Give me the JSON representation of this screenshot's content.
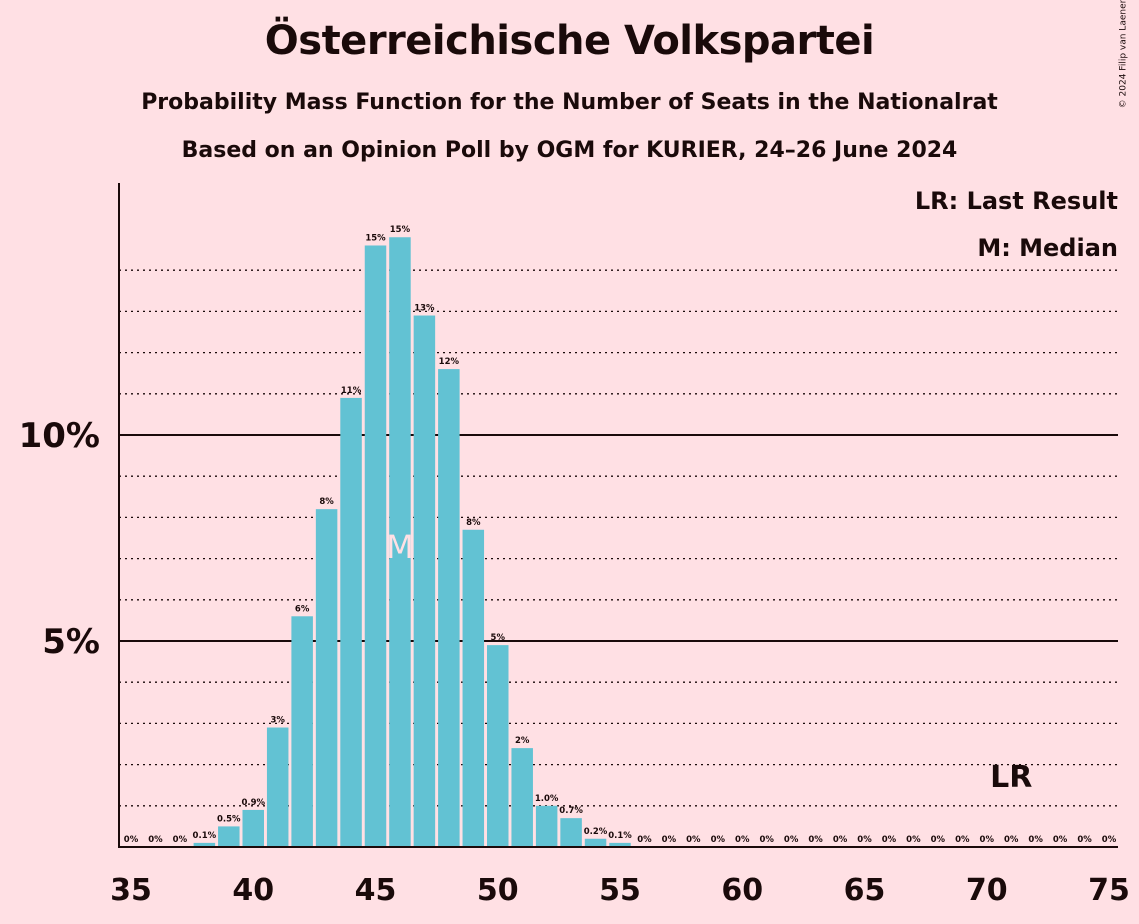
{
  "title": "Österreichische Volkspartei",
  "subtitle1": "Probability Mass Function for the Number of Seats in the Nationalrat",
  "subtitle2": "Based on an Opinion Poll by OGM for KURIER, 24–26 June 2024",
  "copyright": "© 2024 Filip van Laenen",
  "legend": {
    "lr": "LR: Last Result",
    "median": "M: Median"
  },
  "markers": {
    "median_label": "M",
    "median_seat": 46,
    "lr_label": "LR",
    "lr_seat": 71
  },
  "colors": {
    "background": "#ffe0e4",
    "bar": "#62c2d3",
    "text": "#1a0a0a"
  },
  "chart_data": {
    "type": "bar",
    "x": [
      35,
      36,
      37,
      38,
      39,
      40,
      41,
      42,
      43,
      44,
      45,
      46,
      47,
      48,
      49,
      50,
      51,
      52,
      53,
      54,
      55,
      56,
      57,
      58,
      59,
      60,
      61,
      62,
      63,
      64,
      65,
      66,
      67,
      68,
      69,
      70,
      71,
      72,
      73,
      74,
      75
    ],
    "values": [
      0,
      0,
      0,
      0.1,
      0.5,
      0.9,
      2.9,
      5.6,
      8.2,
      10.9,
      14.6,
      14.8,
      12.9,
      11.6,
      7.7,
      4.9,
      2.4,
      1.0,
      0.7,
      0.2,
      0.1,
      0,
      0,
      0,
      0,
      0,
      0,
      0,
      0,
      0,
      0,
      0,
      0,
      0,
      0,
      0,
      0,
      0,
      0,
      0,
      0
    ],
    "bar_labels": [
      "0%",
      "0%",
      "0%",
      "0.1%",
      "0.5%",
      "0.9%",
      "3%",
      "6%",
      "8%",
      "11%",
      "15%",
      "15%",
      "13%",
      "12%",
      "8%",
      "5%",
      "2%",
      "1.0%",
      "0.7%",
      "0.2%",
      "0.1%",
      "0%",
      "0%",
      "0%",
      "0%",
      "0%",
      "0%",
      "0%",
      "0%",
      "0%",
      "0%",
      "0%",
      "0%",
      "0%",
      "0%",
      "0%",
      "0%",
      "0%",
      "0%",
      "0%",
      "0%"
    ],
    "x_ticks": [
      35,
      40,
      45,
      50,
      55,
      60,
      65,
      70,
      75
    ],
    "x_tick_labels": [
      "35",
      "40",
      "45",
      "50",
      "55",
      "60",
      "65",
      "70",
      "75"
    ],
    "y_ticks": [
      5,
      10
    ],
    "y_tick_labels": [
      "5%",
      "10%"
    ],
    "ylim": [
      0,
      16
    ],
    "xlabel": "",
    "ylabel": ""
  }
}
